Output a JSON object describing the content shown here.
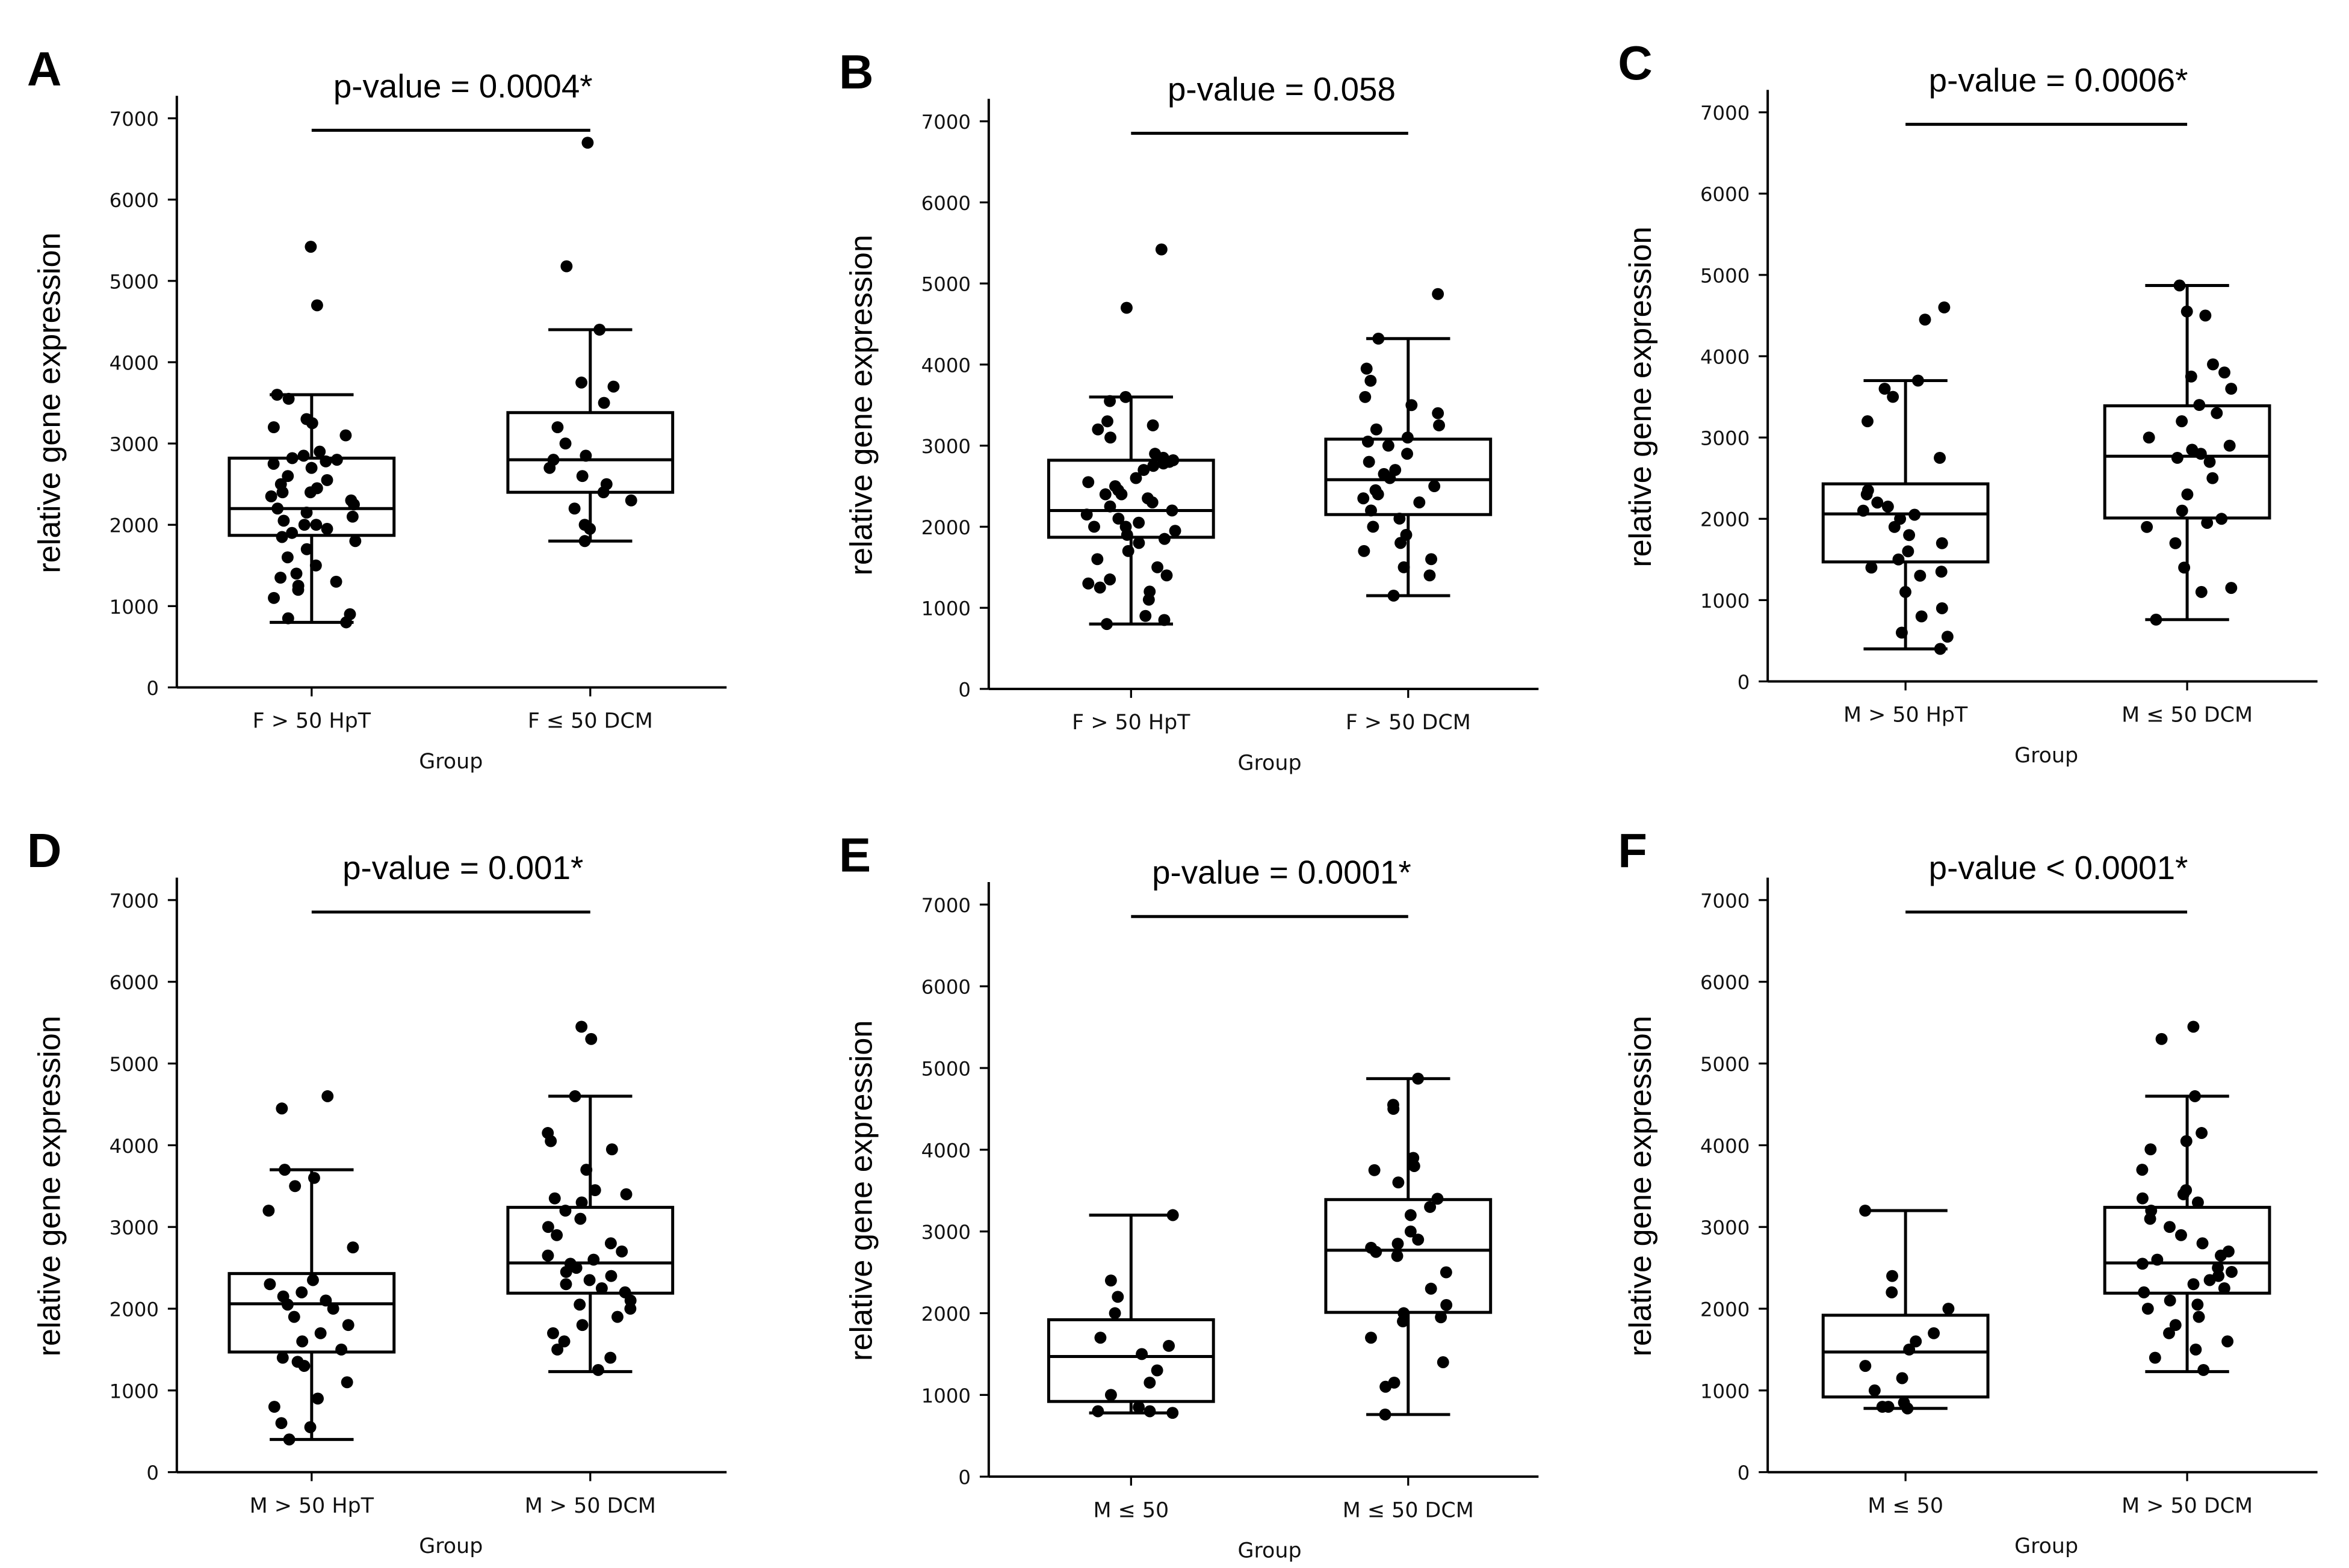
{
  "chart_data": [
    {
      "type": "box",
      "panel": "A",
      "title": "p-value = 0.0004*",
      "xlabel": "Group",
      "ylabel": "relative gene expression",
      "ylim": [
        0,
        7000
      ],
      "yticks": [
        0,
        1000,
        2000,
        3000,
        4000,
        5000,
        6000,
        7000
      ],
      "groups": [
        {
          "name": "F > 50 HpT",
          "whisker_low": 800,
          "q1": 1870,
          "median": 2200,
          "q3": 2820,
          "whisker_high": 3600,
          "points": [
            5420,
            4700,
            3600,
            3550,
            3300,
            3250,
            3200,
            3100,
            2900,
            2850,
            2820,
            2800,
            2780,
            2750,
            2700,
            2600,
            2550,
            2500,
            2450,
            2400,
            2400,
            2350,
            2300,
            2250,
            2200,
            2150,
            2100,
            2050,
            2000,
            2000,
            1950,
            1900,
            1850,
            1800,
            1700,
            1600,
            1500,
            1400,
            1350,
            1300,
            1250,
            1200,
            1100,
            900,
            850,
            800
          ]
        },
        {
          "name": "F ≤ 50 DCM",
          "whisker_low": 1800,
          "q1": 2400,
          "median": 2800,
          "q3": 3380,
          "whisker_high": 4400,
          "points": [
            6700,
            5180,
            4400,
            3750,
            3700,
            3500,
            3200,
            3000,
            2850,
            2800,
            2700,
            2600,
            2500,
            2400,
            2300,
            2200,
            2000,
            1950,
            1800
          ]
        }
      ]
    },
    {
      "type": "box",
      "panel": "B",
      "title": "p-value = 0.058",
      "xlabel": "Group",
      "ylabel": "relative gene expression",
      "ylim": [
        0,
        7000
      ],
      "yticks": [
        0,
        1000,
        2000,
        3000,
        4000,
        5000,
        6000,
        7000
      ],
      "groups": [
        {
          "name": "F > 50 HpT",
          "whisker_low": 800,
          "q1": 1870,
          "median": 2200,
          "q3": 2820,
          "whisker_high": 3600,
          "points": [
            5420,
            4700,
            3600,
            3550,
            3300,
            3250,
            3200,
            3100,
            2900,
            2850,
            2820,
            2800,
            2780,
            2750,
            2700,
            2600,
            2550,
            2500,
            2450,
            2400,
            2400,
            2350,
            2300,
            2250,
            2200,
            2150,
            2100,
            2050,
            2000,
            2000,
            1950,
            1900,
            1850,
            1800,
            1700,
            1600,
            1500,
            1400,
            1350,
            1300,
            1250,
            1200,
            1100,
            900,
            850,
            800
          ]
        },
        {
          "name": "F > 50 DCM",
          "whisker_low": 1150,
          "q1": 2150,
          "median": 2580,
          "q3": 3080,
          "whisker_high": 4320,
          "points": [
            4870,
            4320,
            3950,
            3800,
            3600,
            3500,
            3400,
            3250,
            3200,
            3100,
            3050,
            3000,
            2900,
            2800,
            2700,
            2650,
            2600,
            2500,
            2450,
            2400,
            2350,
            2300,
            2200,
            2100,
            2000,
            1900,
            1800,
            1700,
            1600,
            1500,
            1400,
            1150
          ]
        }
      ]
    },
    {
      "type": "box",
      "panel": "C",
      "title": "p-value = 0.0006*",
      "xlabel": "Group",
      "ylabel": "relative gene expression",
      "ylim": [
        0,
        7000
      ],
      "yticks": [
        0,
        1000,
        2000,
        3000,
        4000,
        5000,
        6000,
        7000
      ],
      "groups": [
        {
          "name": "M > 50 HpT",
          "whisker_low": 400,
          "q1": 1470,
          "median": 2060,
          "q3": 2430,
          "whisker_high": 3700,
          "points": [
            4600,
            4450,
            3700,
            3600,
            3500,
            3200,
            2750,
            2350,
            2300,
            2200,
            2150,
            2100,
            2050,
            2000,
            1900,
            1800,
            1700,
            1600,
            1500,
            1400,
            1350,
            1300,
            1100,
            900,
            800,
            600,
            550,
            400
          ]
        },
        {
          "name": "M ≤ 50 DCM",
          "whisker_low": 760,
          "q1": 2010,
          "median": 2770,
          "q3": 3390,
          "whisker_high": 4870,
          "points": [
            4870,
            4550,
            4500,
            3900,
            3800,
            3750,
            3600,
            3400,
            3300,
            3200,
            3000,
            2900,
            2850,
            2800,
            2750,
            2700,
            2500,
            2300,
            2100,
            2000,
            1950,
            1900,
            1700,
            1400,
            1150,
            1100,
            760
          ]
        }
      ]
    },
    {
      "type": "box",
      "panel": "D",
      "title": "p-value = 0.001*",
      "xlabel": "Group",
      "ylabel": "relative gene expression",
      "ylim": [
        0,
        7000
      ],
      "yticks": [
        0,
        1000,
        2000,
        3000,
        4000,
        5000,
        6000,
        7000
      ],
      "groups": [
        {
          "name": "M > 50 HpT",
          "whisker_low": 400,
          "q1": 1470,
          "median": 2060,
          "q3": 2430,
          "whisker_high": 3700,
          "points": [
            4600,
            4450,
            3700,
            3600,
            3500,
            3200,
            2750,
            2350,
            2300,
            2200,
            2150,
            2100,
            2050,
            2000,
            1900,
            1800,
            1700,
            1600,
            1500,
            1400,
            1350,
            1300,
            1100,
            900,
            800,
            600,
            550,
            400
          ]
        },
        {
          "name": "M > 50 DCM",
          "whisker_low": 1230,
          "q1": 2190,
          "median": 2560,
          "q3": 3240,
          "whisker_high": 4600,
          "points": [
            5450,
            5300,
            4600,
            4150,
            4050,
            3950,
            3700,
            3450,
            3400,
            3350,
            3300,
            3200,
            3100,
            3000,
            2900,
            2800,
            2700,
            2650,
            2600,
            2550,
            2500,
            2450,
            2400,
            2350,
            2300,
            2250,
            2200,
            2100,
            2050,
            2000,
            1900,
            1800,
            1700,
            1600,
            1500,
            1400,
            1250
          ]
        }
      ]
    },
    {
      "type": "box",
      "panel": "E",
      "title": "p-value = 0.0001*",
      "xlabel": "Group",
      "ylabel": "relative gene expression",
      "ylim": [
        0,
        7000
      ],
      "yticks": [
        0,
        1000,
        2000,
        3000,
        4000,
        5000,
        6000,
        7000
      ],
      "groups": [
        {
          "name": "M ≤ 50",
          "whisker_low": 780,
          "q1": 920,
          "median": 1470,
          "q3": 1920,
          "whisker_high": 3200,
          "points": [
            3200,
            2400,
            2200,
            2000,
            1700,
            1600,
            1500,
            1300,
            1150,
            1000,
            850,
            800,
            800,
            780
          ]
        },
        {
          "name": "M ≤ 50 DCM",
          "whisker_low": 760,
          "q1": 2010,
          "median": 2770,
          "q3": 3390,
          "whisker_high": 4870,
          "points": [
            4870,
            4550,
            4500,
            3900,
            3800,
            3750,
            3600,
            3400,
            3300,
            3200,
            3000,
            2900,
            2850,
            2800,
            2750,
            2700,
            2500,
            2300,
            2100,
            2000,
            1950,
            1900,
            1700,
            1400,
            1150,
            1100,
            760
          ]
        }
      ]
    },
    {
      "type": "box",
      "panel": "F",
      "title": "p-value < 0.0001*",
      "xlabel": "Group",
      "ylabel": "relative gene expression",
      "ylim": [
        0,
        7000
      ],
      "yticks": [
        0,
        1000,
        2000,
        3000,
        4000,
        5000,
        6000,
        7000
      ],
      "groups": [
        {
          "name": "M ≤ 50",
          "whisker_low": 780,
          "q1": 920,
          "median": 1470,
          "q3": 1920,
          "whisker_high": 3200,
          "points": [
            3200,
            2400,
            2200,
            2000,
            1700,
            1600,
            1500,
            1300,
            1150,
            1000,
            850,
            800,
            800,
            780
          ]
        },
        {
          "name": "M > 50 DCM",
          "whisker_low": 1230,
          "q1": 2190,
          "median": 2560,
          "q3": 3240,
          "whisker_high": 4600,
          "points": [
            5450,
            5300,
            4600,
            4150,
            4050,
            3950,
            3700,
            3450,
            3400,
            3350,
            3300,
            3200,
            3100,
            3000,
            2900,
            2800,
            2700,
            2650,
            2600,
            2550,
            2500,
            2450,
            2400,
            2350,
            2300,
            2250,
            2200,
            2100,
            2050,
            2000,
            1900,
            1800,
            1700,
            1600,
            1500,
            1400,
            1250
          ]
        }
      ]
    }
  ]
}
